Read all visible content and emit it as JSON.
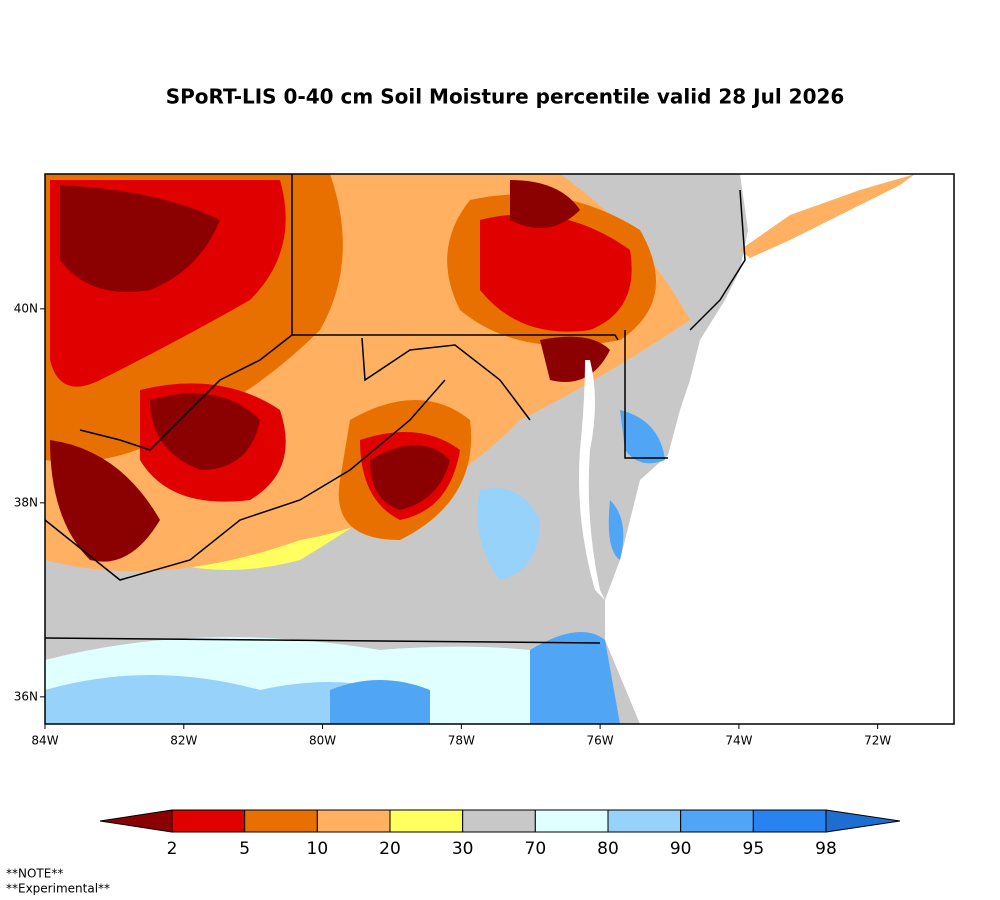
{
  "title": "SPoRT-LIS 0-40 cm Soil Moisture percentile valid 28 Jul 2026",
  "map": {
    "xlim": [
      -84,
      -70.9
    ],
    "ylim": [
      35.72,
      41.39
    ],
    "xticks": [
      {
        "value": -84,
        "label": "84W"
      },
      {
        "value": -82,
        "label": "82W"
      },
      {
        "value": -80,
        "label": "80W"
      },
      {
        "value": -78,
        "label": "78W"
      },
      {
        "value": -76,
        "label": "76W"
      },
      {
        "value": -74,
        "label": "74W"
      },
      {
        "value": -72,
        "label": "72W"
      }
    ],
    "yticks": [
      {
        "value": 36,
        "label": "36N"
      },
      {
        "value": 38,
        "label": "38N"
      },
      {
        "value": 40,
        "label": "40N"
      }
    ]
  },
  "colorbar": {
    "bounds": [
      2,
      5,
      10,
      20,
      30,
      70,
      80,
      90,
      95,
      98
    ],
    "colors": [
      "#8b0000",
      "#e00000",
      "#e87000",
      "#ffb060",
      "#ffff60",
      "#c8c8c8",
      "#e0ffff",
      "#96d2fa",
      "#50a5f5",
      "#2882f0",
      "#1e6ed2"
    ]
  },
  "notes": [
    "**NOTE**",
    "**Experimental**"
  ]
}
